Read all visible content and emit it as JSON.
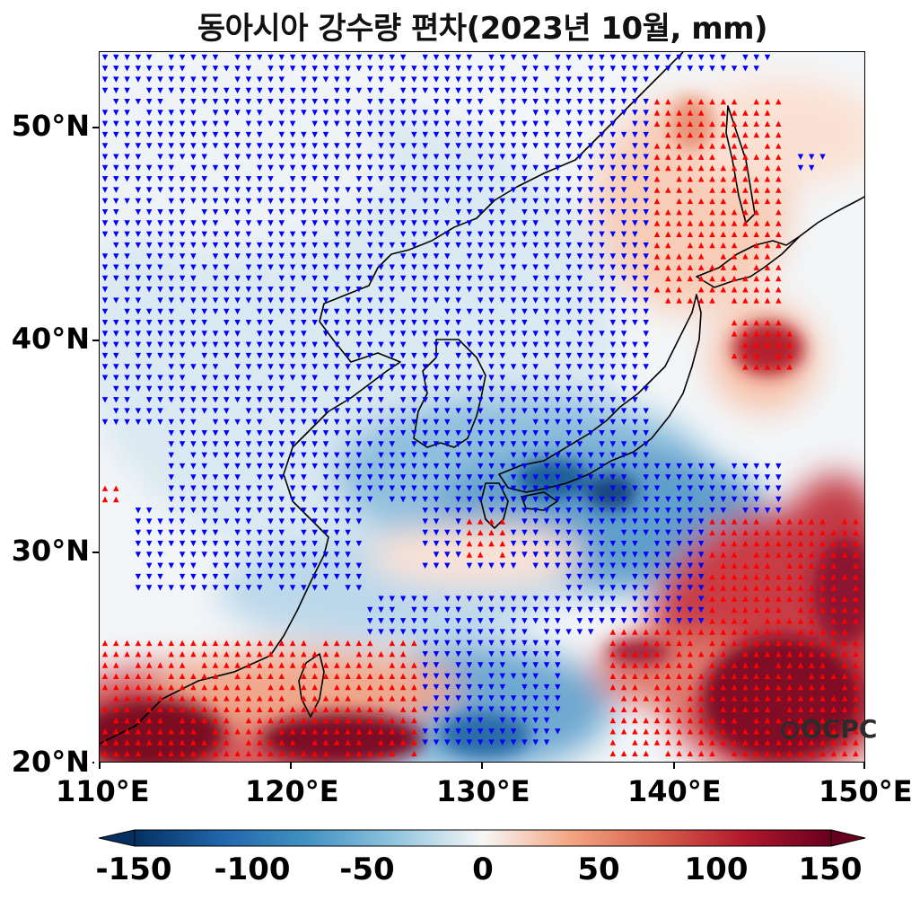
{
  "title": "동아시아 강수량 편차(2023년 10월, mm)",
  "lon_ticks": [
    "110°E",
    "120°E",
    "130°E",
    "140°E",
    "150°E"
  ],
  "lat_ticks": [
    "20°N",
    "30°N",
    "40°N",
    "50°N"
  ],
  "colorbar": {
    "ticks": [
      "-150",
      "-100",
      "-50",
      "0",
      "50",
      "100",
      "150"
    ],
    "range": [
      -150,
      150
    ],
    "colormap": "RdBu_r",
    "extend": "both",
    "orientation": "horizontal"
  },
  "logo_text": "OCPC",
  "colors": {
    "strong_negative": "#053061",
    "negative": "#4393c3",
    "neutral": "#f7f7f7",
    "positive": "#f4a582",
    "strong_positive": "#67001f",
    "dry_marker": "#0000ff",
    "wet_marker": "#ff0000"
  },
  "map_extent": {
    "lon": [
      110,
      150
    ],
    "lat": [
      20,
      53.5
    ]
  },
  "markers": {
    "dry": "blue downward triangles (significant negative anomaly)",
    "wet": "red upward triangles (significant positive anomaly)"
  }
}
